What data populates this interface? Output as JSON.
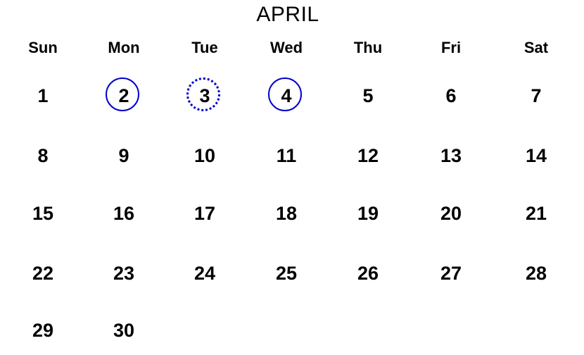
{
  "month": "APRIL",
  "weekdays": [
    "Sun",
    "Mon",
    "Tue",
    "Wed",
    "Thu",
    "Fri",
    "Sat"
  ],
  "marker_color": "#0000cc",
  "weeks": [
    [
      {
        "day": "1",
        "mark": ""
      },
      {
        "day": "2",
        "mark": "solid"
      },
      {
        "day": "3",
        "mark": "dotted"
      },
      {
        "day": "4",
        "mark": "solid"
      },
      {
        "day": "5",
        "mark": ""
      },
      {
        "day": "6",
        "mark": ""
      },
      {
        "day": "7",
        "mark": ""
      }
    ],
    [
      {
        "day": "8",
        "mark": ""
      },
      {
        "day": "9",
        "mark": ""
      },
      {
        "day": "10",
        "mark": ""
      },
      {
        "day": "11",
        "mark": ""
      },
      {
        "day": "12",
        "mark": ""
      },
      {
        "day": "13",
        "mark": ""
      },
      {
        "day": "14",
        "mark": ""
      }
    ],
    [
      {
        "day": "15",
        "mark": ""
      },
      {
        "day": "16",
        "mark": ""
      },
      {
        "day": "17",
        "mark": ""
      },
      {
        "day": "18",
        "mark": ""
      },
      {
        "day": "19",
        "mark": ""
      },
      {
        "day": "20",
        "mark": ""
      },
      {
        "day": "21",
        "mark": ""
      }
    ],
    [
      {
        "day": "22",
        "mark": ""
      },
      {
        "day": "23",
        "mark": ""
      },
      {
        "day": "24",
        "mark": ""
      },
      {
        "day": "25",
        "mark": ""
      },
      {
        "day": "26",
        "mark": ""
      },
      {
        "day": "27",
        "mark": ""
      },
      {
        "day": "28",
        "mark": ""
      }
    ],
    [
      {
        "day": "29",
        "mark": ""
      },
      {
        "day": "30",
        "mark": ""
      }
    ]
  ]
}
